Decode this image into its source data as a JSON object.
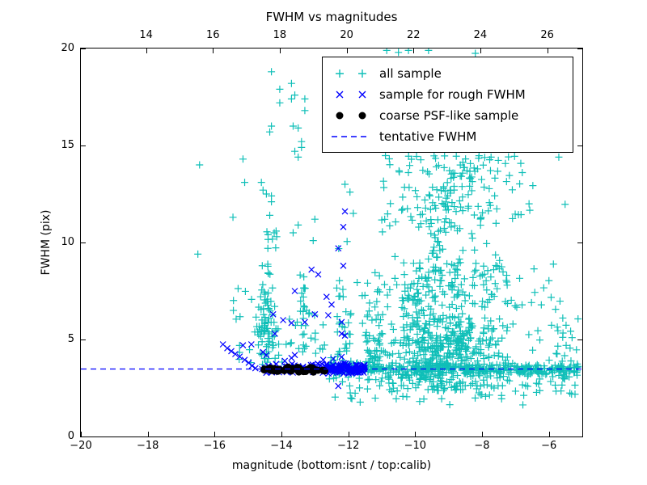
{
  "chart_data": {
    "type": "scatter",
    "title": "FWHM vs magnitudes",
    "xlabel": "magnitude (bottom:isnt / top:calib)",
    "ylabel": "FWHM (pix)",
    "xlim": [
      -20,
      -5
    ],
    "ylim": [
      0,
      20
    ],
    "top_xlim": [
      12.05,
      27.05
    ],
    "grid": false,
    "x_ticks_bottom": {
      "values": [
        -20,
        -18,
        -16,
        -14,
        -12,
        -10,
        -8,
        -6
      ],
      "labels": [
        "−20",
        "−18",
        "−16",
        "−14",
        "−12",
        "−10",
        "−8",
        "−6"
      ]
    },
    "x_ticks_top": {
      "values": [
        14,
        16,
        18,
        20,
        22,
        24,
        26
      ],
      "labels": [
        "14",
        "16",
        "18",
        "20",
        "22",
        "24",
        "26"
      ]
    },
    "y_ticks": {
      "values": [
        0,
        5,
        10,
        15,
        20
      ],
      "labels": [
        "0",
        "5",
        "10",
        "15",
        "20"
      ]
    },
    "tentative_fwhm": 3.5,
    "legend": {
      "position": "upper right",
      "entries": [
        {
          "label": "all sample",
          "marker": "plus",
          "color": "#0fbfb8"
        },
        {
          "label": "sample for rough FWHM",
          "marker": "x",
          "color": "#0000ff"
        },
        {
          "label": "coarse PSF-like sample",
          "marker": "dot",
          "color": "#000000"
        },
        {
          "label": "tentative FWHM",
          "marker": "dashed-line",
          "color": "#0000ff"
        }
      ]
    },
    "series": [
      {
        "name": "all sample",
        "marker": "plus",
        "color": "#0fbfb8",
        "points": [
          [
            -16.45,
            14.0
          ],
          [
            -15.15,
            14.3
          ],
          [
            -15.1,
            13.1
          ],
          [
            -16.5,
            9.4
          ],
          [
            -15.45,
            11.3
          ],
          [
            -14.3,
            18.8
          ],
          [
            -13.7,
            18.2
          ],
          [
            -14.05,
            17.9
          ],
          [
            -13.6,
            17.6
          ],
          [
            -13.7,
            17.4
          ],
          [
            -13.3,
            17.4
          ],
          [
            -14.05,
            17.2
          ],
          [
            -13.3,
            16.8
          ],
          [
            -14.3,
            16.0
          ],
          [
            -13.65,
            16.0
          ],
          [
            -13.5,
            15.9
          ],
          [
            -14.35,
            15.7
          ],
          [
            -13.4,
            15.2
          ],
          [
            -13.4,
            14.9
          ],
          [
            -13.6,
            14.7
          ],
          [
            -13.5,
            14.4
          ],
          [
            -14.6,
            13.1
          ],
          [
            -14.55,
            12.7
          ],
          [
            -14.45,
            12.5
          ],
          [
            -14.3,
            12.4
          ],
          [
            -14.3,
            12.1
          ],
          [
            -14.35,
            11.4
          ],
          [
            -13.0,
            11.2
          ],
          [
            -13.5,
            10.9
          ],
          [
            -14.4,
            10.4
          ],
          [
            -13.65,
            10.5
          ],
          [
            -13.05,
            10.1
          ],
          [
            -10.85,
            19.9
          ],
          [
            -10.2,
            19.9
          ],
          [
            -9.6,
            19.9
          ],
          [
            -8.2,
            19.75
          ],
          [
            -10.5,
            19.8
          ],
          [
            -12.1,
            13.0
          ],
          [
            -11.95,
            12.6
          ],
          [
            -11.85,
            11.5
          ]
        ],
        "clusters": [
          {
            "desc": "dense band hugging tentative FWHM line",
            "n": 340,
            "mag": {
              "min": -11.6,
              "max": -5.1
            },
            "fwhm": {
              "mu": 3.45,
              "sigma": 0.18,
              "min": 2.95,
              "max": 4.05
            }
          },
          {
            "desc": "band behind rough-FWHM markers",
            "n": 60,
            "mag": {
              "min": -12.6,
              "max": -11.6
            },
            "fwhm": {
              "mu": 3.5,
              "sigma": 0.2,
              "min": 3.0,
              "max": 4.1
            }
          },
          {
            "desc": "main cloud core",
            "n": 430,
            "mag": {
              "mu": -9.1,
              "sigma": 1.0,
              "min": -11.6,
              "max": -5.6
            },
            "fwhm": {
              "mu": 4.4,
              "sigma": 1.1,
              "min": 2.3,
              "max": 7.0
            }
          },
          {
            "desc": "cloud middle spray",
            "n": 170,
            "mag": {
              "mu": -9.0,
              "sigma": 1.35,
              "min": -11.8,
              "max": -5.3
            },
            "fwhm": {
              "mu": 7.6,
              "sigma": 1.4,
              "min": 5.6,
              "max": 10.8
            }
          },
          {
            "desc": "cloud upper spray",
            "n": 120,
            "mag": {
              "mu": -8.8,
              "sigma": 1.4,
              "min": -12.2,
              "max": -5.4
            },
            "fwhm": {
              "min": 10.8,
              "max": 14.5
            }
          },
          {
            "desc": "rising ridge lower",
            "n": 55,
            "line": [
              [
                -10.35,
                6.3
              ],
              [
                -8.8,
                11.2
              ]
            ],
            "jitter": [
              0.2,
              0.4
            ]
          },
          {
            "desc": "rising ridge upper",
            "n": 40,
            "line": [
              [
                -9.9,
                11.3
              ],
              [
                -8.05,
                14.3
              ]
            ],
            "jitter": [
              0.18,
              0.35
            ]
          },
          {
            "desc": "high points (mostly behind legend)",
            "n": 30,
            "mag": {
              "min": -12.3,
              "max": -5.6
            },
            "fwhm": {
              "min": 14.8,
              "max": 19.4
            }
          },
          {
            "desc": "scatter below tentative line",
            "n": 85,
            "mag": {
              "min": -12.6,
              "max": -5.2
            },
            "fwhm": {
              "mu": 2.6,
              "sigma": 0.45,
              "min": 1.3,
              "max": 3.1
            }
          },
          {
            "desc": "right-edge clump",
            "n": 28,
            "mag": {
              "min": -5.8,
              "max": -5.1
            },
            "fwhm": {
              "mu": 4.2,
              "sigma": 1.2,
              "min": 2.3,
              "max": 7.2
            }
          },
          {
            "desc": "left column dense (mag -14.45)",
            "n": 60,
            "mag": {
              "mu": -14.45,
              "sigma": 0.13,
              "min": -14.75,
              "max": -14.1
            },
            "fwhm": {
              "mu": 5.3,
              "sigma": 1.4,
              "min": 3.7,
              "max": 8.2
            }
          },
          {
            "desc": "left column upper",
            "n": 14,
            "mag": {
              "mu": -14.4,
              "sigma": 0.15,
              "min": -14.7,
              "max": -14.1
            },
            "fwhm": {
              "min": 8.2,
              "max": 10.6
            }
          },
          {
            "desc": "left sparse scatter",
            "n": 55,
            "mag": {
              "min": -15.6,
              "max": -12.6
            },
            "fwhm": {
              "mu": 5.0,
              "sigma": 1.3,
              "min": 3.8,
              "max": 8.8
            }
          },
          {
            "desc": "column at mag -12.1",
            "n": 30,
            "mag": {
              "min": -12.35,
              "max": -11.9
            },
            "fwhm": {
              "mu": 5.5,
              "sigma": 2.2,
              "min": 3.8,
              "max": 12.8
            }
          },
          {
            "desc": "column at mag -11.2",
            "n": 40,
            "mag": {
              "min": -11.5,
              "max": -11.05
            },
            "fwhm": {
              "mu": 4.5,
              "sigma": 1.1,
              "min": 3.2,
              "max": 7.5
            }
          },
          {
            "desc": "sub-column at mag -13.4",
            "n": 18,
            "mag": {
              "min": -13.55,
              "max": -13.25
            },
            "fwhm": {
              "min": 4.2,
              "max": 8.5
            }
          }
        ]
      },
      {
        "name": "sample for rough FWHM",
        "marker": "x",
        "color": "#0000ff",
        "points": [
          [
            -12.1,
            11.6
          ],
          [
            -12.15,
            10.8
          ],
          [
            -12.3,
            9.7
          ],
          [
            -12.15,
            8.8
          ],
          [
            -13.1,
            8.6
          ],
          [
            -12.9,
            8.35
          ],
          [
            -13.6,
            7.5
          ],
          [
            -12.65,
            7.2
          ],
          [
            -12.5,
            6.8
          ],
          [
            -14.25,
            6.3
          ],
          [
            -13.95,
            6.0
          ],
          [
            -13.7,
            5.85
          ],
          [
            -13.0,
            6.3
          ],
          [
            -12.6,
            6.25
          ],
          [
            -14.2,
            5.3
          ],
          [
            -13.6,
            4.2
          ],
          [
            -12.2,
            5.9
          ],
          [
            -12.1,
            5.2
          ],
          [
            -12.2,
            4.1
          ],
          [
            -13.7,
            4.05
          ],
          [
            -12.45,
            4.0
          ],
          [
            -12.2,
            5.3
          ],
          [
            -13.3,
            5.9
          ],
          [
            -14.9,
            4.75
          ],
          [
            -15.15,
            4.7
          ],
          [
            -15.75,
            4.75
          ],
          [
            -15.62,
            4.55
          ],
          [
            -15.5,
            4.4
          ],
          [
            -15.38,
            4.25
          ],
          [
            -15.25,
            4.12
          ],
          [
            -15.1,
            3.95
          ],
          [
            -14.98,
            3.8
          ],
          [
            -14.88,
            3.65
          ],
          [
            -14.78,
            3.52
          ],
          [
            -12.3,
            2.6
          ],
          [
            -14.55,
            4.35
          ],
          [
            -14.45,
            4.2
          ],
          [
            -13.9,
            3.9
          ],
          [
            -12.75,
            3.95
          ]
        ],
        "clusters": [
          {
            "desc": "band at tentative FWHM",
            "n": 110,
            "mag": {
              "min": -14.6,
              "max": -11.5
            },
            "fwhm": {
              "mu": 3.5,
              "sigma": 0.12,
              "min": 3.2,
              "max": 3.8
            }
          },
          {
            "desc": "dense band right part",
            "n": 70,
            "mag": {
              "min": -12.8,
              "max": -11.5
            },
            "fwhm": {
              "mu": 3.5,
              "sigma": 0.15,
              "min": 3.1,
              "max": 3.9
            }
          }
        ]
      },
      {
        "name": "coarse PSF-like sample",
        "marker": "dot",
        "color": "#000000",
        "points": [],
        "clusters": [
          {
            "desc": "overlapping dot bar",
            "n": 48,
            "mag": {
              "min": -14.55,
              "max": -12.55
            },
            "fwhm": {
              "mu": 3.45,
              "sigma": 0.07,
              "min": 3.3,
              "max": 3.6
            }
          }
        ]
      },
      {
        "name": "tentative FWHM",
        "type": "hline",
        "style": "dashed",
        "color": "#0000ff",
        "y": 3.5
      }
    ]
  }
}
